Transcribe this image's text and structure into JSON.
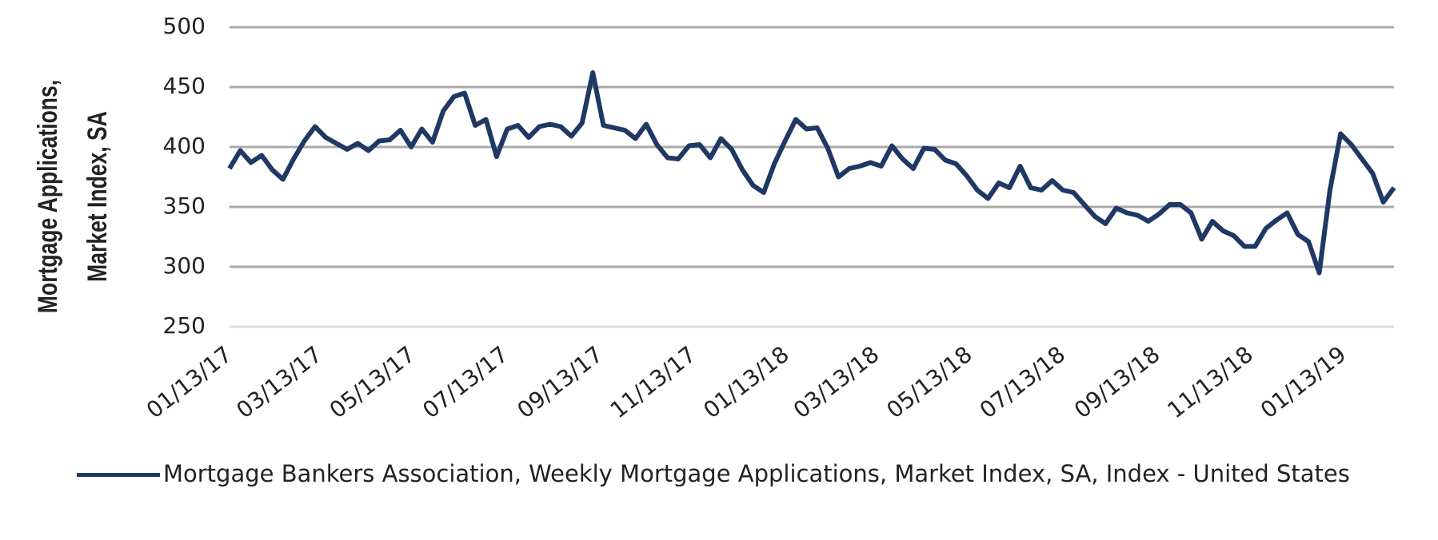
{
  "chart_data": {
    "type": "line",
    "y_label": [
      "Mortgage Applications,",
      "Market Index, SA"
    ],
    "x": [
      "01/13/17",
      "01/20/17",
      "01/27/17",
      "02/03/17",
      "02/10/17",
      "02/17/17",
      "02/24/17",
      "03/03/17",
      "03/10/17",
      "03/17/17",
      "03/24/17",
      "03/31/17",
      "04/07/17",
      "04/14/17",
      "04/21/17",
      "04/28/17",
      "05/05/17",
      "05/12/17",
      "05/19/17",
      "05/26/17",
      "06/02/17",
      "06/09/17",
      "06/16/17",
      "06/23/17",
      "06/30/17",
      "07/07/17",
      "07/14/17",
      "07/21/17",
      "07/28/17",
      "08/04/17",
      "08/11/17",
      "08/18/17",
      "08/25/17",
      "09/01/17",
      "09/08/17",
      "09/15/17",
      "09/22/17",
      "09/29/17",
      "10/06/17",
      "10/13/17",
      "10/20/17",
      "10/27/17",
      "11/03/17",
      "11/10/17",
      "11/17/17",
      "11/24/17",
      "12/01/17",
      "12/08/17",
      "12/15/17",
      "12/22/17",
      "12/29/17",
      "01/05/18",
      "01/12/18",
      "01/19/18",
      "01/26/18",
      "02/02/18",
      "02/09/18",
      "02/16/18",
      "02/23/18",
      "03/02/18",
      "03/09/18",
      "03/16/18",
      "03/23/18",
      "03/30/18",
      "04/06/18",
      "04/13/18",
      "04/20/18",
      "04/27/18",
      "05/04/18",
      "05/11/18",
      "05/18/18",
      "05/25/18",
      "06/01/18",
      "06/08/18",
      "06/15/18",
      "06/22/18",
      "06/29/18",
      "07/06/18",
      "07/13/18",
      "07/20/18",
      "07/27/18",
      "08/03/18",
      "08/10/18",
      "08/17/18",
      "08/24/18",
      "08/31/18",
      "09/07/18",
      "09/14/18",
      "09/21/18",
      "09/28/18",
      "10/05/18",
      "10/12/18",
      "10/19/18",
      "10/26/18",
      "11/02/18",
      "11/09/18",
      "11/16/18",
      "11/23/18",
      "11/30/18",
      "12/07/18",
      "12/14/18",
      "12/21/18",
      "12/28/18",
      "01/04/19",
      "01/11/19",
      "01/18/19",
      "01/25/19",
      "02/01/19",
      "02/08/19",
      "02/15/19"
    ],
    "series": [
      {
        "name": "Mortgage Bankers Association, Weekly Mortgage Applications, Market Index, SA, Index - United States",
        "color": "#1f3864",
        "values": [
          382,
          397,
          387,
          393,
          381,
          373,
          390,
          405,
          417,
          408,
          403,
          398,
          403,
          397,
          405,
          406,
          414,
          400,
          415,
          404,
          430,
          442,
          445,
          418,
          423,
          392,
          415,
          418,
          408,
          417,
          419,
          417,
          409,
          420,
          462,
          418,
          416,
          414,
          407,
          419,
          402,
          391,
          390,
          401,
          402,
          391,
          407,
          398,
          381,
          368,
          362,
          386,
          405,
          423,
          415,
          416,
          399,
          375,
          382,
          384,
          387,
          384,
          401,
          390,
          382,
          399,
          398,
          389,
          386,
          376,
          364,
          357,
          370,
          366,
          384,
          366,
          364,
          372,
          364,
          362,
          352,
          342,
          336,
          349,
          345,
          343,
          338,
          344,
          352,
          352,
          345,
          323,
          338,
          330,
          326,
          317,
          317,
          332,
          339,
          345,
          327,
          321,
          295,
          364,
          411,
          402,
          390,
          378,
          354,
          366
        ]
      }
    ],
    "xlim": [
      "01/13/17",
      "02/15/19"
    ],
    "xticks": [
      "01/13/17",
      "03/13/17",
      "05/13/17",
      "07/13/17",
      "09/13/17",
      "11/13/17",
      "01/13/18",
      "03/13/18",
      "05/13/18",
      "07/13/18",
      "09/13/18",
      "11/13/18",
      "01/13/19"
    ],
    "ylim": [
      250,
      500
    ],
    "yticks": [
      250,
      300,
      350,
      400,
      450,
      500
    ],
    "grid": true
  }
}
